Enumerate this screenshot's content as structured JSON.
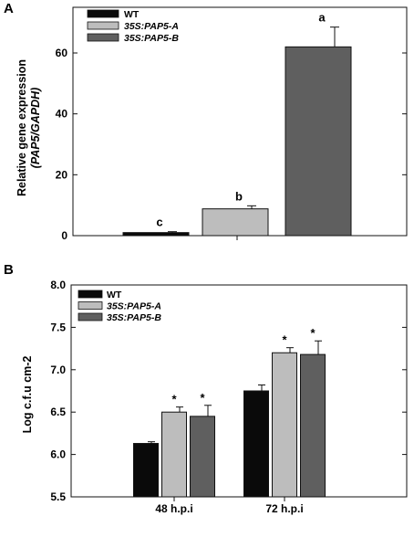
{
  "chart_data": [
    {
      "panel": "A",
      "type": "bar",
      "ylabel_line1": "Relative gene expression",
      "ylabel_line2": "(PAP5/GAPDH)",
      "ylim": [
        0,
        75
      ],
      "yticks": [
        0,
        20,
        40,
        60
      ],
      "series": [
        {
          "name": "WT",
          "value": 1.0,
          "error": 0.3,
          "label": "c",
          "color": "#0a0a0a"
        },
        {
          "name": "35S:PAP5-A",
          "value": 8.8,
          "error": 1.0,
          "label": "b",
          "color": "#bdbdbd"
        },
        {
          "name": "35S:PAP5-B",
          "value": 62.0,
          "error": 6.5,
          "label": "a",
          "color": "#5f5f5f"
        }
      ],
      "legend_placement": "top-left",
      "grid": false
    },
    {
      "panel": "B",
      "type": "bar",
      "ylabel": "Log c.f.u cm-2",
      "ylim": [
        5.5,
        8.0
      ],
      "yticks": [
        "5.5",
        "6.0",
        "6.5",
        "7.0",
        "7.5",
        "8.0"
      ],
      "categories": [
        "48 h.p.i",
        "72 h.p.i"
      ],
      "series": [
        {
          "name": "WT",
          "values": [
            6.13,
            6.75
          ],
          "errors": [
            0.02,
            0.07
          ],
          "marks": [
            "",
            ""
          ],
          "color": "#0a0a0a"
        },
        {
          "name": "35S:PAP5-A",
          "values": [
            6.5,
            7.2
          ],
          "errors": [
            0.06,
            0.06
          ],
          "marks": [
            "*",
            "*"
          ],
          "color": "#bdbdbd"
        },
        {
          "name": "35S:PAP5-B",
          "values": [
            6.45,
            7.18
          ],
          "errors": [
            0.13,
            0.16
          ],
          "marks": [
            "*",
            "*"
          ],
          "color": "#5f5f5f"
        }
      ],
      "legend_placement": "top-left",
      "grid": false
    }
  ]
}
